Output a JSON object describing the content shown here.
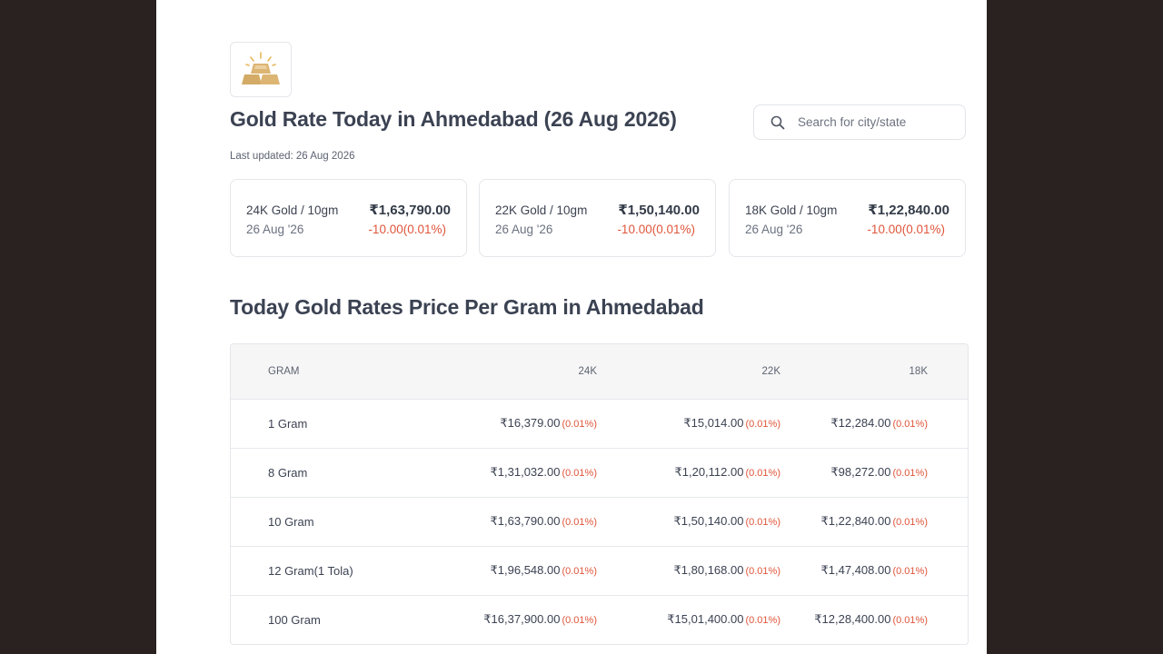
{
  "header": {
    "title": "Gold Rate Today in Ahmedabad (26 Aug 2026)",
    "last_updated": "Last updated: 26 Aug 2026"
  },
  "search": {
    "placeholder": "Search for city/state",
    "value": ""
  },
  "cards": [
    {
      "label": "24K Gold / 10gm",
      "date": "26 Aug '26",
      "price": "₹1,63,790.00",
      "change": "-10.00(0.01%)"
    },
    {
      "label": "22K Gold / 10gm",
      "date": "26 Aug '26",
      "price": "₹1,50,140.00",
      "change": "-10.00(0.01%)"
    },
    {
      "label": "18K Gold / 10gm",
      "date": "26 Aug '26",
      "price": "₹1,22,840.00",
      "change": "-10.00(0.01%)"
    }
  ],
  "section_title": "Today Gold Rates Price Per Gram in Ahmedabad",
  "table": {
    "headers": [
      "GRAM",
      "24K",
      "22K",
      "18K"
    ],
    "rows": [
      {
        "gram": "1 Gram",
        "k24": "₹16,379.00",
        "k24_pct": "(0.01%)",
        "k22": "₹15,014.00",
        "k22_pct": "(0.01%)",
        "k18": "₹12,284.00",
        "k18_pct": "(0.01%)"
      },
      {
        "gram": "8 Gram",
        "k24": "₹1,31,032.00",
        "k24_pct": "(0.01%)",
        "k22": "₹1,20,112.00",
        "k22_pct": "(0.01%)",
        "k18": "₹98,272.00",
        "k18_pct": "(0.01%)"
      },
      {
        "gram": "10 Gram",
        "k24": "₹1,63,790.00",
        "k24_pct": "(0.01%)",
        "k22": "₹1,50,140.00",
        "k22_pct": "(0.01%)",
        "k18": "₹1,22,840.00",
        "k18_pct": "(0.01%)"
      },
      {
        "gram": "12 Gram(1 Tola)",
        "k24": "₹1,96,548.00",
        "k24_pct": "(0.01%)",
        "k22": "₹1,80,168.00",
        "k22_pct": "(0.01%)",
        "k18": "₹1,47,408.00",
        "k18_pct": "(0.01%)"
      },
      {
        "gram": "100 Gram",
        "k24": "₹16,37,900.00",
        "k24_pct": "(0.01%)",
        "k22": "₹15,01,400.00",
        "k22_pct": "(0.01%)",
        "k18": "₹12,28,400.00",
        "k18_pct": "(0.01%)"
      }
    ]
  },
  "colors": {
    "negative": "#e0553a",
    "gold": "#d9b16f"
  },
  "icons": {
    "logo": "gold-bars-icon",
    "search": "search-icon"
  }
}
